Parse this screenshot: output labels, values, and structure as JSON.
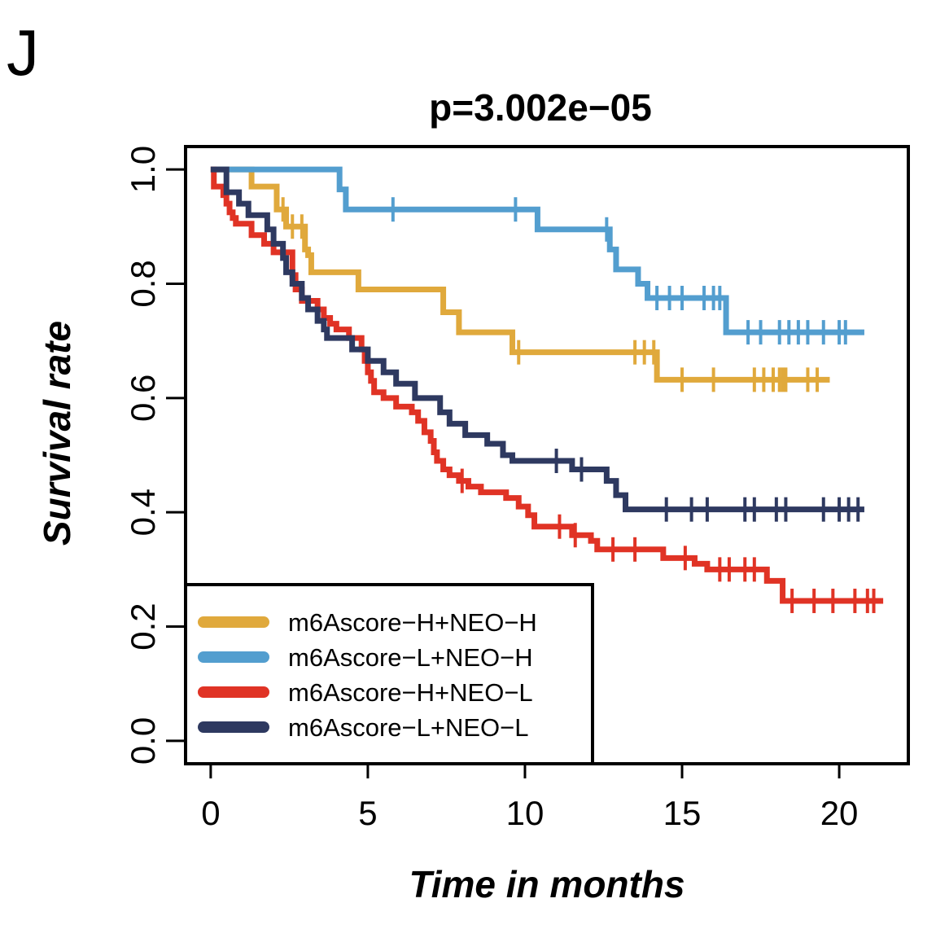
{
  "panel_label": "J",
  "chart_data": {
    "type": "line",
    "title": "p=3.002e−05",
    "xlabel": "Time in months",
    "ylabel": "Survival rate",
    "xlim": [
      -0.8,
      22.2
    ],
    "ylim": [
      -0.04,
      1.04
    ],
    "x_ticks": [
      0,
      5,
      10,
      15,
      20
    ],
    "x_tick_labels": [
      "0",
      "5",
      "10",
      "15",
      "20"
    ],
    "y_ticks": [
      0,
      0.2,
      0.4,
      0.6,
      0.8,
      1
    ],
    "y_tick_labels": [
      "0.0",
      "0.2",
      "0.4",
      "0.6",
      "0.8",
      "1.0"
    ],
    "legend_position": "bottom-left",
    "grid": false,
    "series": [
      {
        "name": "m6Ascore−H+NEO−H",
        "color": "#e0a93c",
        "steps": [
          [
            0,
            1.0
          ],
          [
            1.3,
            0.97
          ],
          [
            2.1,
            0.93
          ],
          [
            2.4,
            0.9
          ],
          [
            3.0,
            0.86
          ],
          [
            3.1,
            0.85
          ],
          [
            3.2,
            0.82
          ],
          [
            4.7,
            0.79
          ],
          [
            7.4,
            0.75
          ],
          [
            7.9,
            0.715
          ],
          [
            9.6,
            0.68
          ],
          [
            14.2,
            0.632
          ],
          [
            19.7,
            0.632
          ]
        ],
        "censor": [
          2.3,
          2.6,
          2.9,
          9.8,
          13.5,
          13.8,
          14.1,
          15.0,
          16.0,
          17.3,
          17.6,
          17.9,
          18.1,
          18.2,
          18.3,
          19.0,
          19.3
        ]
      },
      {
        "name": "m6Ascore−L+NEO−H",
        "color": "#539ecf",
        "steps": [
          [
            0,
            1.0
          ],
          [
            4.1,
            0.965
          ],
          [
            4.3,
            0.93
          ],
          [
            10.4,
            0.895
          ],
          [
            12.7,
            0.86
          ],
          [
            12.9,
            0.825
          ],
          [
            13.6,
            0.8
          ],
          [
            13.9,
            0.775
          ],
          [
            16.4,
            0.715
          ],
          [
            20.8,
            0.715
          ]
        ],
        "censor": [
          5.8,
          9.7,
          12.6,
          14.2,
          14.6,
          15.0,
          15.7,
          16.0,
          16.2,
          17.1,
          17.5,
          18.1,
          18.4,
          18.7,
          19.0,
          19.5,
          20.0,
          20.2
        ]
      },
      {
        "name": "m6Ascore−H+NEO−L",
        "color": "#e03325",
        "steps": [
          [
            0,
            1.0
          ],
          [
            0.1,
            0.97
          ],
          [
            0.4,
            0.955
          ],
          [
            0.5,
            0.94
          ],
          [
            0.6,
            0.925
          ],
          [
            0.7,
            0.915
          ],
          [
            0.8,
            0.905
          ],
          [
            1.3,
            0.885
          ],
          [
            1.7,
            0.87
          ],
          [
            2.0,
            0.855
          ],
          [
            2.6,
            0.815
          ],
          [
            2.7,
            0.79
          ],
          [
            2.9,
            0.77
          ],
          [
            3.4,
            0.755
          ],
          [
            3.6,
            0.74
          ],
          [
            3.8,
            0.73
          ],
          [
            4.0,
            0.72
          ],
          [
            4.4,
            0.705
          ],
          [
            4.8,
            0.685
          ],
          [
            4.9,
            0.665
          ],
          [
            5.0,
            0.645
          ],
          [
            5.1,
            0.63
          ],
          [
            5.2,
            0.61
          ],
          [
            5.5,
            0.6
          ],
          [
            5.9,
            0.585
          ],
          [
            6.4,
            0.575
          ],
          [
            6.6,
            0.56
          ],
          [
            6.8,
            0.54
          ],
          [
            7.0,
            0.525
          ],
          [
            7.1,
            0.505
          ],
          [
            7.2,
            0.49
          ],
          [
            7.4,
            0.475
          ],
          [
            7.6,
            0.465
          ],
          [
            7.9,
            0.455
          ],
          [
            8.2,
            0.445
          ],
          [
            8.6,
            0.435
          ],
          [
            9.4,
            0.425
          ],
          [
            9.8,
            0.41
          ],
          [
            10.1,
            0.395
          ],
          [
            10.3,
            0.375
          ],
          [
            11.5,
            0.36
          ],
          [
            12.1,
            0.35
          ],
          [
            12.3,
            0.335
          ],
          [
            14.4,
            0.32
          ],
          [
            15.4,
            0.31
          ],
          [
            15.8,
            0.3
          ],
          [
            17.7,
            0.28
          ],
          [
            18.2,
            0.245
          ],
          [
            21.4,
            0.245
          ]
        ],
        "censor": [
          8.0,
          11.1,
          11.6,
          12.8,
          13.5,
          15.1,
          16.2,
          16.5,
          17.0,
          17.3,
          18.5,
          19.2,
          19.8,
          20.5,
          20.9,
          21.1
        ]
      },
      {
        "name": "m6Ascore−L+NEO−L",
        "color": "#2e3960",
        "steps": [
          [
            0,
            1.0
          ],
          [
            0.5,
            0.96
          ],
          [
            0.9,
            0.94
          ],
          [
            1.2,
            0.92
          ],
          [
            1.8,
            0.895
          ],
          [
            2.0,
            0.87
          ],
          [
            2.3,
            0.845
          ],
          [
            2.4,
            0.82
          ],
          [
            2.6,
            0.8
          ],
          [
            2.9,
            0.775
          ],
          [
            3.1,
            0.755
          ],
          [
            3.4,
            0.735
          ],
          [
            3.6,
            0.72
          ],
          [
            3.7,
            0.705
          ],
          [
            4.5,
            0.685
          ],
          [
            5.0,
            0.665
          ],
          [
            5.5,
            0.645
          ],
          [
            5.9,
            0.625
          ],
          [
            6.5,
            0.6
          ],
          [
            7.3,
            0.575
          ],
          [
            7.6,
            0.555
          ],
          [
            8.1,
            0.535
          ],
          [
            8.8,
            0.52
          ],
          [
            9.3,
            0.5
          ],
          [
            9.6,
            0.49
          ],
          [
            11.5,
            0.475
          ],
          [
            12.6,
            0.455
          ],
          [
            12.9,
            0.43
          ],
          [
            13.2,
            0.405
          ],
          [
            20.8,
            0.405
          ]
        ],
        "censor": [
          11.0,
          11.8,
          14.5,
          15.3,
          15.8,
          17.0,
          17.3,
          18.0,
          18.3,
          19.5,
          20.0,
          20.3,
          20.6
        ]
      }
    ]
  }
}
